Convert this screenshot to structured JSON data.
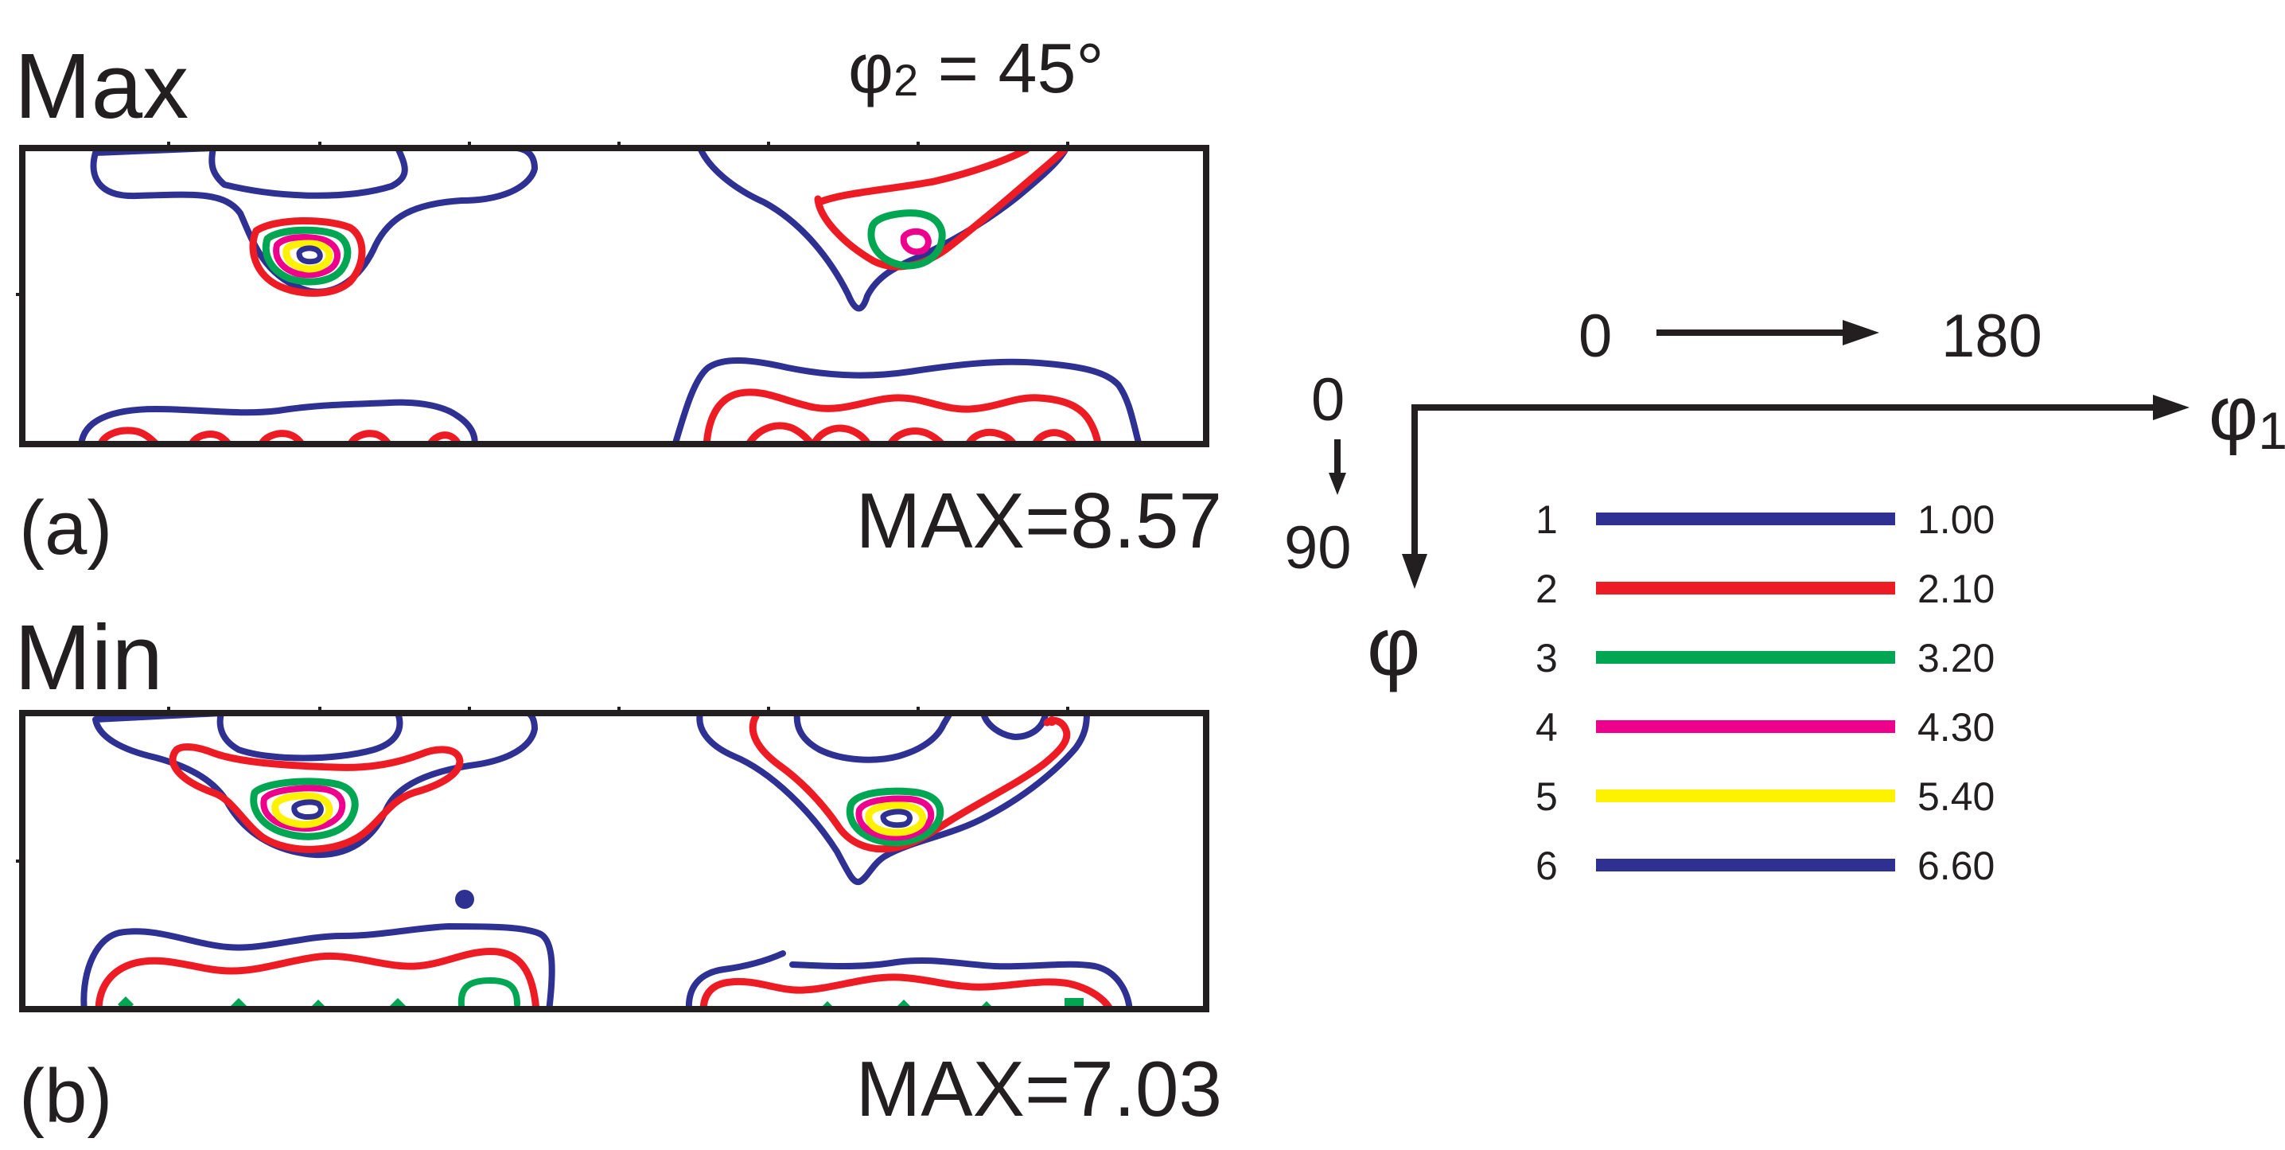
{
  "header": {
    "max_label": "Max",
    "phi2_symbol": "φ",
    "phi2_subscript": "2",
    "phi2_value": " = 45°"
  },
  "panels": [
    {
      "id": "a",
      "top_label": "Max",
      "caption": "(a)",
      "max_text": "MAX=8.57"
    },
    {
      "id": "b",
      "top_label": "Min",
      "caption": "(b)",
      "max_text": "MAX=7.03"
    }
  ],
  "axes": {
    "phi1_start": "0",
    "phi1_end": "180",
    "phi1_symbol": "φ",
    "phi1_subscript": "1",
    "phi_start": "0",
    "phi_end": "90",
    "phi_symbol": "φ"
  },
  "legend": [
    {
      "level": "1",
      "value": "1.00",
      "color": "#2e3192"
    },
    {
      "level": "2",
      "value": "2.10",
      "color": "#ed1c24"
    },
    {
      "level": "3",
      "value": "3.20",
      "color": "#00a651"
    },
    {
      "level": "4",
      "value": "4.30",
      "color": "#ec008c"
    },
    {
      "level": "5",
      "value": "5.40",
      "color": "#fff200"
    },
    {
      "level": "6",
      "value": "6.60",
      "color": "#2e3192"
    }
  ],
  "contour_colors": {
    "blue": "#2e3192",
    "red": "#ed1c24",
    "green": "#00a651",
    "magenta": "#ec008c",
    "yellow": "#fff200"
  }
}
